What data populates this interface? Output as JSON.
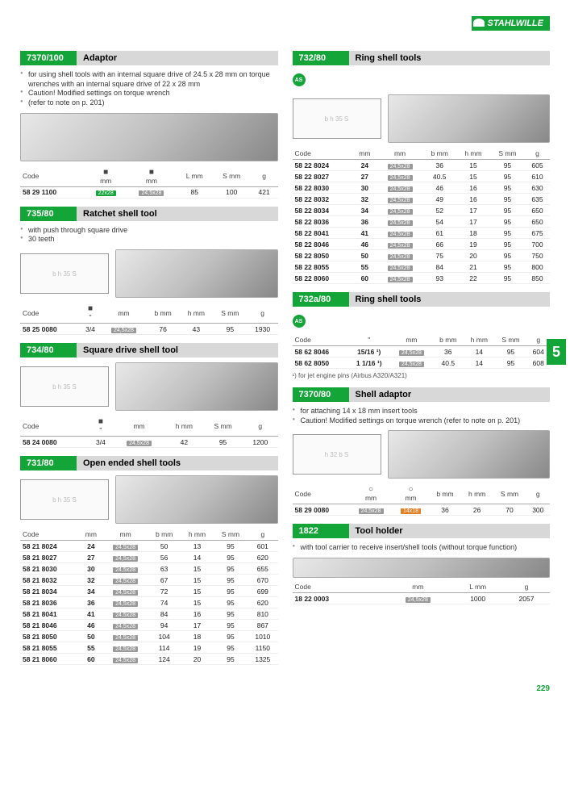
{
  "brand": "STAHLWILLE",
  "page_number": "229",
  "side_tab": "5",
  "colors": {
    "accent": "#13a538",
    "header_bg": "#d8d8d8",
    "tag_gray": "#999999",
    "tag_orange": "#e67e22"
  },
  "sections": {
    "s7370_100": {
      "code": "7370/100",
      "title": "Adaptor",
      "bullets": [
        "for using shell tools with an internal square drive of 24.5 x 28 mm on torque wrenches with an internal square drive of 22 x 28 mm",
        "Caution! Modified settings on torque wrench",
        "(refer to note on p. 201)"
      ],
      "columns": [
        "Code",
        "mm",
        "mm",
        "L mm",
        "S mm",
        "g"
      ],
      "rows": [
        [
          "58 29 1100",
          "22x28",
          "24,5x28",
          "85",
          "100",
          "421"
        ]
      ]
    },
    "s735_80": {
      "code": "735/80",
      "title": "Ratchet shell tool",
      "bullets": [
        "with push through square drive",
        "30 teeth"
      ],
      "columns": [
        "Code",
        "\"",
        "mm",
        "b mm",
        "h mm",
        "S mm",
        "g"
      ],
      "rows": [
        [
          "58 25 0080",
          "3/4",
          "24,5x28",
          "76",
          "43",
          "95",
          "1930"
        ]
      ]
    },
    "s734_80": {
      "code": "734/80",
      "title": "Square drive shell tool",
      "columns": [
        "Code",
        "\"",
        "mm",
        "h mm",
        "S mm",
        "g"
      ],
      "rows": [
        [
          "58 24 0080",
          "3/4",
          "24,5x28",
          "42",
          "95",
          "1200"
        ]
      ]
    },
    "s731_80": {
      "code": "731/80",
      "title": "Open ended shell tools",
      "columns": [
        "Code",
        "mm",
        "mm",
        "b mm",
        "h mm",
        "S mm",
        "g"
      ],
      "rows": [
        [
          "58 21 8024",
          "24",
          "24,5x28",
          "50",
          "13",
          "95",
          "601"
        ],
        [
          "58 21 8027",
          "27",
          "24,5x28",
          "56",
          "14",
          "95",
          "620"
        ],
        [
          "58 21 8030",
          "30",
          "24,5x28",
          "63",
          "15",
          "95",
          "655"
        ],
        [
          "58 21 8032",
          "32",
          "24,5x28",
          "67",
          "15",
          "95",
          "670"
        ],
        [
          "58 21 8034",
          "34",
          "24,5x28",
          "72",
          "15",
          "95",
          "699"
        ],
        [
          "58 21 8036",
          "36",
          "24,5x28",
          "74",
          "15",
          "95",
          "620"
        ],
        [
          "58 21 8041",
          "41",
          "24,5x28",
          "84",
          "16",
          "95",
          "810"
        ],
        [
          "58 21 8046",
          "46",
          "24,5x28",
          "94",
          "17",
          "95",
          "867"
        ],
        [
          "58 21 8050",
          "50",
          "24,5x28",
          "104",
          "18",
          "95",
          "1010"
        ],
        [
          "58 21 8055",
          "55",
          "24,5x28",
          "114",
          "19",
          "95",
          "1150"
        ],
        [
          "58 21 8060",
          "60",
          "24,5x28",
          "124",
          "20",
          "95",
          "1325"
        ]
      ]
    },
    "s732_80": {
      "code": "732/80",
      "title": "Ring shell tools",
      "columns": [
        "Code",
        "mm",
        "mm",
        "b mm",
        "h mm",
        "S mm",
        "g"
      ],
      "rows": [
        [
          "58 22 8024",
          "24",
          "24,5x28",
          "36",
          "15",
          "95",
          "605"
        ],
        [
          "58 22 8027",
          "27",
          "24,5x28",
          "40.5",
          "15",
          "95",
          "610"
        ],
        [
          "58 22 8030",
          "30",
          "24,5x28",
          "46",
          "16",
          "95",
          "630"
        ],
        [
          "58 22 8032",
          "32",
          "24,5x28",
          "49",
          "16",
          "95",
          "635"
        ],
        [
          "58 22 8034",
          "34",
          "24,5x28",
          "52",
          "17",
          "95",
          "650"
        ],
        [
          "58 22 8036",
          "36",
          "24,5x28",
          "54",
          "17",
          "95",
          "650"
        ],
        [
          "58 22 8041",
          "41",
          "24,5x28",
          "61",
          "18",
          "95",
          "675"
        ],
        [
          "58 22 8046",
          "46",
          "24,5x28",
          "66",
          "19",
          "95",
          "700"
        ],
        [
          "58 22 8050",
          "50",
          "24,5x28",
          "75",
          "20",
          "95",
          "750"
        ],
        [
          "58 22 8055",
          "55",
          "24,5x28",
          "84",
          "21",
          "95",
          "800"
        ],
        [
          "58 22 8060",
          "60",
          "24,5x28",
          "93",
          "22",
          "95",
          "850"
        ]
      ]
    },
    "s732a_80": {
      "code": "732a/80",
      "title": "Ring shell tools",
      "columns": [
        "Code",
        "\"",
        "mm",
        "b mm",
        "h mm",
        "S mm",
        "g"
      ],
      "rows": [
        [
          "58 62 8046",
          "15/16 ¹)",
          "24,5x28",
          "36",
          "14",
          "95",
          "604"
        ],
        [
          "58 62 8050",
          "1 1/16 ¹)",
          "24,5x28",
          "40.5",
          "14",
          "95",
          "608"
        ]
      ],
      "footnote": "¹) for jet engine pins (Airbus A320/A321)"
    },
    "s7370_80": {
      "code": "7370/80",
      "title": "Shell adaptor",
      "bullets": [
        "for attaching 14 x 18 mm insert tools",
        "Caution! Modified settings on torque wrench (refer to note on p. 201)"
      ],
      "columns": [
        "Code",
        "mm",
        "mm",
        "b mm",
        "h mm",
        "S mm",
        "g"
      ],
      "rows": [
        [
          "58 29 0080",
          "24,5x28",
          "14x18",
          "36",
          "26",
          "70",
          "300"
        ]
      ]
    },
    "s1822": {
      "code": "1822",
      "title": "Tool holder",
      "bullets": [
        "with tool carrier to receive insert/shell tools (without torque function)"
      ],
      "columns": [
        "Code",
        "mm",
        "L mm",
        "g"
      ],
      "rows": [
        [
          "18 22 0003",
          "24,5x28",
          "1000",
          "2057"
        ]
      ]
    }
  }
}
